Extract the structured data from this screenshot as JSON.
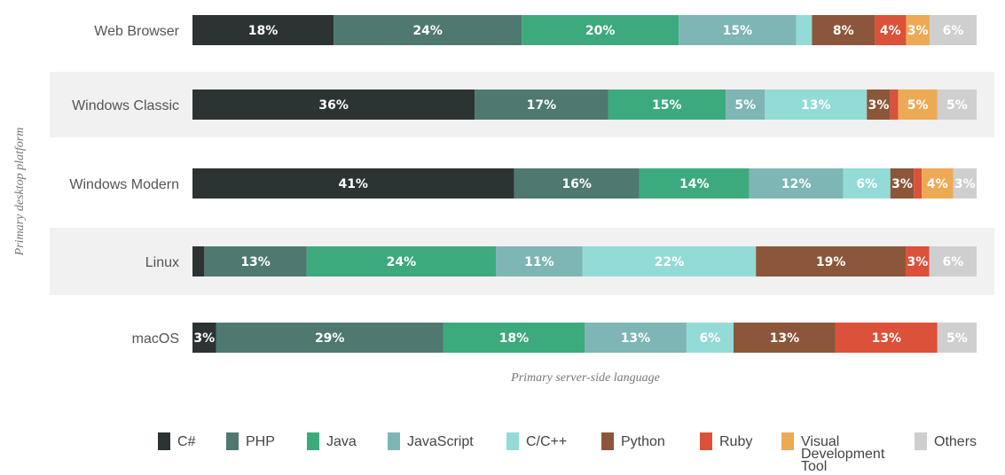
{
  "chart_data": {
    "type": "bar",
    "orientation": "horizontal",
    "stacked": true,
    "normalized_percent": true,
    "xlabel": "Primary server-side language",
    "ylabel": "Primary desktop platform",
    "categories": [
      "Web Browser",
      "Windows Classic",
      "Windows Modern",
      "Linux",
      "macOS"
    ],
    "series": [
      {
        "name": "C#",
        "color": "#2b3333",
        "values": [
          18,
          36,
          41,
          1.5,
          3
        ]
      },
      {
        "name": "PHP",
        "color": "#4e7870",
        "values": [
          24,
          17,
          16,
          13,
          29
        ]
      },
      {
        "name": "Java",
        "color": "#3daa7e",
        "values": [
          20,
          15,
          14,
          24,
          18
        ]
      },
      {
        "name": "JavaScript",
        "color": "#7db6b4",
        "values": [
          15,
          5,
          12,
          11,
          13
        ]
      },
      {
        "name": "C/C++",
        "color": "#93dbd6",
        "values": [
          2,
          13,
          6,
          22,
          6
        ]
      },
      {
        "name": "Python",
        "color": "#8b5639",
        "values": [
          8,
          3,
          3,
          19,
          13
        ]
      },
      {
        "name": "Ruby",
        "color": "#db5139",
        "values": [
          4,
          1,
          1,
          3,
          13
        ]
      },
      {
        "name": "Visual Development Tool",
        "color": "#edaa55",
        "values": [
          3,
          5,
          4,
          0,
          0
        ]
      },
      {
        "name": "Others",
        "color": "#cfcfcf",
        "values": [
          6,
          5,
          3,
          6,
          5
        ]
      }
    ],
    "data_labels": [
      [
        "18%",
        "24%",
        "20%",
        "15%",
        "",
        "8%",
        "4%",
        "3%",
        "6%"
      ],
      [
        "36%",
        "17%",
        "15%",
        "5%",
        "13%",
        "3%",
        "",
        "5%",
        "5%"
      ],
      [
        "41%",
        "16%",
        "14%",
        "12%",
        "6%",
        "3%",
        "",
        "4%",
        "3%"
      ],
      [
        "",
        "13%",
        "24%",
        "11%",
        "22%",
        "19%",
        "3%",
        "",
        "6%"
      ],
      [
        "3%",
        "29%",
        "18%",
        "13%",
        "6%",
        "13%",
        "13%",
        "",
        "5%"
      ]
    ],
    "row_band_colors": [
      "#ffffff",
      "#f1f1f1"
    ],
    "legend_position": "bottom",
    "legend_entries": [
      "C#",
      "PHP",
      "Java",
      "JavaScript",
      "C/C++",
      "Python",
      "Ruby",
      "Visual Development Tool",
      "Others"
    ],
    "legend_wrapped_lines": {
      "Visual Development Tool": [
        "Visual",
        "Development",
        "Tool"
      ]
    },
    "label_color_dark": "#ffffff",
    "label_color_light": "#ffffff"
  }
}
